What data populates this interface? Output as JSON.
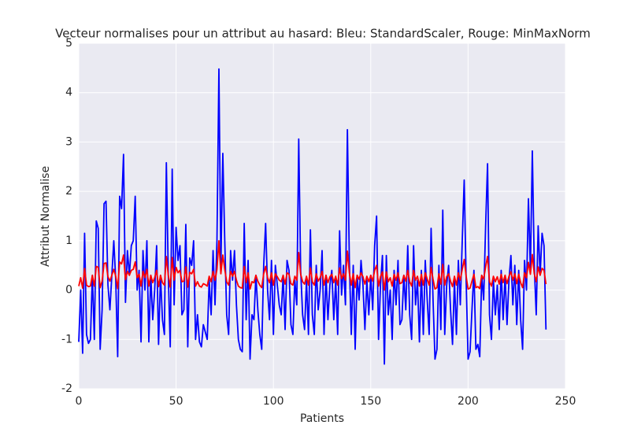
{
  "chart_data": {
    "type": "line",
    "title": "Vecteur normalises pour un attribut au hasard: Bleu: StandardScaler, Rouge: MinMaxNorm",
    "x_label": "Patients",
    "y_label": "Attribut Normalise",
    "xlim": [
      0,
      250
    ],
    "xticks": [
      0,
      50,
      100,
      150,
      200,
      250
    ],
    "ylim": [
      -2,
      5
    ],
    "yticks": [
      -2,
      -1,
      0,
      1,
      2,
      3,
      4,
      5
    ],
    "grid": true,
    "x": [
      0,
      1,
      2,
      3,
      4,
      5,
      6,
      7,
      8,
      9,
      10,
      11,
      12,
      13,
      14,
      15,
      16,
      17,
      18,
      19,
      20,
      21,
      22,
      23,
      24,
      25,
      26,
      27,
      28,
      29,
      30,
      31,
      32,
      33,
      34,
      35,
      36,
      37,
      38,
      39,
      40,
      41,
      42,
      43,
      44,
      45,
      46,
      47,
      48,
      49,
      50,
      51,
      52,
      53,
      54,
      55,
      56,
      57,
      58,
      59,
      60,
      61,
      62,
      63,
      64,
      65,
      66,
      67,
      68,
      69,
      70,
      71,
      72,
      73,
      74,
      75,
      76,
      77,
      78,
      79,
      80,
      81,
      82,
      83,
      84,
      85,
      86,
      87,
      88,
      89,
      90,
      91,
      92,
      93,
      94,
      95,
      96,
      97,
      98,
      99,
      100,
      101,
      102,
      103,
      104,
      105,
      106,
      107,
      108,
      109,
      110,
      111,
      112,
      113,
      114,
      115,
      116,
      117,
      118,
      119,
      120,
      121,
      122,
      123,
      124,
      125,
      126,
      127,
      128,
      129,
      130,
      131,
      132,
      133,
      134,
      135,
      136,
      137,
      138,
      139,
      140,
      141,
      142,
      143,
      144,
      145,
      146,
      147,
      148,
      149,
      150,
      151,
      152,
      153,
      154,
      155,
      156,
      157,
      158,
      159,
      160,
      161,
      162,
      163,
      164,
      165,
      166,
      167,
      168,
      169,
      170,
      171,
      172,
      173,
      174,
      175,
      176,
      177,
      178,
      179,
      180,
      181,
      182,
      183,
      184,
      185,
      186,
      187,
      188,
      189,
      190,
      191,
      192,
      193,
      194,
      195,
      196,
      197,
      198,
      199,
      200,
      201,
      202,
      203,
      204,
      205,
      206,
      207,
      208,
      209,
      210,
      211,
      212,
      213,
      214,
      215,
      216,
      217,
      218,
      219,
      220,
      221,
      222,
      223,
      224,
      225,
      226,
      227,
      228,
      229,
      230,
      231,
      232,
      233,
      234,
      235,
      236,
      237,
      238,
      239,
      240
    ],
    "series": [
      {
        "color": "#0000ff",
        "values": [
          -1.05,
          0,
          -1.28,
          1.15,
          -0.9,
          -1.08,
          -1.0,
          0.3,
          -1.0,
          1.4,
          1.25,
          -1.2,
          -0.4,
          1.75,
          1.8,
          0.1,
          -0.4,
          0.3,
          1.0,
          0.2,
          -1.35,
          1.9,
          1.65,
          2.75,
          -0.25,
          0.8,
          0.3,
          0.9,
          1.0,
          1.9,
          0,
          0.4,
          -1.05,
          0.8,
          0,
          1.0,
          -1.05,
          0.3,
          -0.6,
          0,
          0.9,
          -1.1,
          0.3,
          -0.6,
          -0.9,
          2.58,
          0.3,
          -1.15,
          2.45,
          -0.3,
          1.27,
          0.6,
          0.9,
          -0.5,
          -0.4,
          1.33,
          -1.15,
          0.65,
          0.5,
          1.0,
          -1.0,
          -0.5,
          -1.05,
          -1.15,
          -0.7,
          -0.85,
          -1.0,
          0.2,
          -0.5,
          0.8,
          -0.3,
          1.0,
          4.48,
          0.5,
          2.77,
          1.0,
          -0.5,
          -0.9,
          0.8,
          0.2,
          0.8,
          -0.3,
          -1.0,
          -1.2,
          -1.25,
          1.35,
          -0.6,
          0.6,
          -1.4,
          -0.5,
          -0.6,
          0.3,
          -0.4,
          -0.9,
          -1.2,
          0.5,
          1.35,
          0,
          -0.6,
          0.6,
          -0.9,
          0.5,
          0.1,
          -0.3,
          -0.5,
          0.3,
          -0.8,
          0.6,
          0.4,
          -0.7,
          -0.9,
          0.2,
          -0.3,
          3.06,
          0.4,
          -0.5,
          -0.8,
          0.2,
          -0.9,
          1.22,
          -0.5,
          -0.9,
          0.5,
          -0.4,
          0,
          0.8,
          -0.9,
          0.3,
          -0.6,
          0.1,
          0.4,
          -0.6,
          0.2,
          -0.9,
          1.2,
          -0.1,
          0.5,
          -0.3,
          3.25,
          0.6,
          -0.9,
          0.5,
          -1.2,
          0.3,
          -0.2,
          0.6,
          0.1,
          -0.8,
          0.2,
          -0.5,
          0.3,
          -0.4,
          0.9,
          1.5,
          -1.0,
          0.1,
          0.7,
          -1.5,
          0.7,
          -0.5,
          0,
          -1.0,
          0.4,
          -0.3,
          0.6,
          -0.7,
          -0.6,
          0.3,
          -0.4,
          0.9,
          -0.5,
          -1.0,
          0.9,
          -0.3,
          0.2,
          -1.05,
          0.4,
          -0.9,
          0.6,
          -0.2,
          -0.9,
          1.25,
          -0.2,
          -1.4,
          -1.2,
          0.5,
          -0.8,
          1.62,
          -0.9,
          0.1,
          0.5,
          -0.4,
          -1.1,
          0.2,
          -0.9,
          0.6,
          -0.3,
          1.0,
          2.23,
          0.2,
          -1.4,
          -1.25,
          -0.4,
          0.4,
          -1.2,
          -1.1,
          -1.35,
          0.3,
          -0.2,
          1.3,
          2.56,
          -0.5,
          -1.0,
          0.2,
          -0.5,
          0.1,
          -0.8,
          0.4,
          -0.6,
          0.3,
          -0.7,
          0.2,
          0.7,
          -0.3,
          0.5,
          -0.7,
          0.4,
          -0.6,
          -1.2,
          0.6,
          0,
          1.85,
          0.4,
          2.82,
          0.5,
          -0.5,
          1.3,
          0.3,
          1.15,
          0.9,
          -0.8
        ]
      },
      {
        "color": "#ff0000",
        "values": [
          0.08,
          0.25,
          0.04,
          0.44,
          0.1,
          0.07,
          0.08,
          0.3,
          0.08,
          0.48,
          0.46,
          0.05,
          0.18,
          0.54,
          0.55,
          0.27,
          0.18,
          0.3,
          0.42,
          0.28,
          0.03,
          0.57,
          0.53,
          0.71,
          0.21,
          0.38,
          0.3,
          0.4,
          0.42,
          0.57,
          0.25,
          0.32,
          0.08,
          0.38,
          0.25,
          0.42,
          0.08,
          0.3,
          0.15,
          0.25,
          0.4,
          0.07,
          0.3,
          0.15,
          0.1,
          0.68,
          0.3,
          0.06,
          0.66,
          0.2,
          0.46,
          0.35,
          0.4,
          0.17,
          0.18,
          0.47,
          0.06,
          0.36,
          0.33,
          0.42,
          0.08,
          0.17,
          0.08,
          0.06,
          0.13,
          0.11,
          0.08,
          0.28,
          0.17,
          0.38,
          0.2,
          0.42,
          1.0,
          0.33,
          0.71,
          0.42,
          0.17,
          0.1,
          0.38,
          0.28,
          0.38,
          0.2,
          0.08,
          0.05,
          0.04,
          0.48,
          0.15,
          0.35,
          0.02,
          0.17,
          0.15,
          0.3,
          0.18,
          0.1,
          0.05,
          0.33,
          0.48,
          0.25,
          0.15,
          0.35,
          0.1,
          0.33,
          0.27,
          0.2,
          0.17,
          0.3,
          0.12,
          0.35,
          0.32,
          0.13,
          0.1,
          0.28,
          0.2,
          0.76,
          0.32,
          0.17,
          0.12,
          0.28,
          0.1,
          0.45,
          0.17,
          0.1,
          0.33,
          0.18,
          0.25,
          0.38,
          0.1,
          0.3,
          0.15,
          0.27,
          0.32,
          0.15,
          0.28,
          0.1,
          0.45,
          0.23,
          0.33,
          0.2,
          0.79,
          0.35,
          0.1,
          0.33,
          0.05,
          0.3,
          0.22,
          0.35,
          0.27,
          0.12,
          0.28,
          0.17,
          0.3,
          0.18,
          0.4,
          0.5,
          0.08,
          0.27,
          0.37,
          0.0,
          0.37,
          0.17,
          0.25,
          0.08,
          0.32,
          0.2,
          0.35,
          0.13,
          0.15,
          0.3,
          0.18,
          0.4,
          0.17,
          0.08,
          0.4,
          0.2,
          0.28,
          0.08,
          0.32,
          0.1,
          0.35,
          0.22,
          0.1,
          0.46,
          0.22,
          0.02,
          0.05,
          0.33,
          0.12,
          0.52,
          0.1,
          0.27,
          0.33,
          0.18,
          0.07,
          0.28,
          0.1,
          0.35,
          0.2,
          0.42,
          0.62,
          0.28,
          0.02,
          0.04,
          0.18,
          0.32,
          0.05,
          0.07,
          0.03,
          0.3,
          0.22,
          0.47,
          0.68,
          0.17,
          0.08,
          0.28,
          0.17,
          0.27,
          0.12,
          0.32,
          0.15,
          0.3,
          0.13,
          0.28,
          0.37,
          0.2,
          0.33,
          0.13,
          0.32,
          0.15,
          0.05,
          0.35,
          0.25,
          0.56,
          0.32,
          0.72,
          0.33,
          0.17,
          0.47,
          0.3,
          0.44,
          0.4,
          0.12
        ]
      }
    ]
  }
}
